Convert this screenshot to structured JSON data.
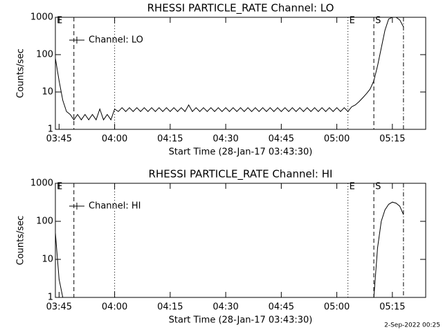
{
  "chart_data": [
    {
      "type": "line",
      "title": "RHESSI PARTICLE_RATE Channel: LO",
      "xlabel": "Start Time (28-Jan-17 03:43:30)",
      "ylabel": "Counts/sec",
      "log_y": true,
      "legend": "upper left",
      "xlim": [
        "03:44",
        "05:24"
      ],
      "xticks": [
        "03:45",
        "04:00",
        "04:15",
        "04:30",
        "04:45",
        "05:00",
        "05:15"
      ],
      "ylim": [
        1,
        1000
      ],
      "yticks": [
        1,
        10,
        100,
        1000
      ],
      "markers": [
        {
          "x": "03:49",
          "style": "dashed"
        },
        {
          "x": "04:00",
          "style": "dotted"
        },
        {
          "x": "05:03",
          "style": "dotted"
        },
        {
          "x": "05:10",
          "style": "dashed"
        },
        {
          "x": "05:18",
          "style": "dashdot"
        }
      ],
      "annotations": [
        {
          "text": "E",
          "x": "03:44"
        },
        {
          "text": "E",
          "x": "05:03"
        },
        {
          "text": "S",
          "x": "05:10"
        }
      ],
      "x": [
        "03:44",
        "03:45",
        "03:46",
        "03:47",
        "03:48",
        "03:49",
        "03:50",
        "03:51",
        "03:52",
        "03:53",
        "03:54",
        "03:55",
        "03:56",
        "03:57",
        "03:58",
        "03:59",
        "04:00",
        "04:01",
        "04:02",
        "04:03",
        "04:04",
        "04:05",
        "04:06",
        "04:07",
        "04:08",
        "04:09",
        "04:10",
        "04:11",
        "04:12",
        "04:13",
        "04:14",
        "04:15",
        "04:16",
        "04:17",
        "04:18",
        "04:19",
        "04:20",
        "04:21",
        "04:22",
        "04:23",
        "04:24",
        "04:25",
        "04:26",
        "04:27",
        "04:28",
        "04:29",
        "04:30",
        "04:31",
        "04:32",
        "04:33",
        "04:34",
        "04:35",
        "04:36",
        "04:37",
        "04:38",
        "04:39",
        "04:40",
        "04:41",
        "04:42",
        "04:43",
        "04:44",
        "04:45",
        "04:46",
        "04:47",
        "04:48",
        "04:49",
        "04:50",
        "04:51",
        "04:52",
        "04:53",
        "04:54",
        "04:55",
        "04:56",
        "04:57",
        "04:58",
        "04:59",
        "05:00",
        "05:01",
        "05:02",
        "05:03",
        "05:04",
        "05:05",
        "05:06",
        "05:07",
        "05:08",
        "05:09",
        "05:10",
        "05:11",
        "05:12",
        "05:13",
        "05:14",
        "05:15",
        "05:16",
        "05:17",
        "05:18"
      ],
      "series": [
        {
          "name": "Channel: LO",
          "color": "#000000",
          "values": [
            80,
            20,
            6,
            3,
            2.5,
            1.8,
            2.5,
            1.8,
            2.5,
            1.8,
            2.5,
            1.8,
            3.5,
            1.8,
            2.5,
            1.8,
            3.5,
            3.0,
            3.8,
            3.0,
            3.8,
            3.0,
            3.8,
            3.0,
            3.8,
            3.0,
            3.8,
            3.0,
            3.8,
            3.0,
            3.8,
            3.0,
            3.8,
            3.0,
            3.8,
            3.0,
            4.5,
            3.0,
            3.8,
            3.0,
            3.8,
            3.0,
            3.8,
            3.0,
            3.8,
            3.0,
            3.8,
            3.0,
            3.8,
            3.0,
            3.8,
            3.0,
            3.8,
            3.0,
            3.8,
            3.0,
            3.8,
            3.0,
            3.8,
            3.0,
            3.8,
            3.0,
            3.8,
            3.0,
            3.8,
            3.0,
            3.8,
            3.0,
            3.8,
            3.0,
            3.8,
            3.0,
            3.8,
            3.0,
            3.8,
            3.0,
            3.8,
            3.0,
            3.8,
            3.0,
            4,
            4.5,
            5.5,
            7,
            9,
            12,
            20,
            50,
            150,
            450,
            900,
            1000,
            1000,
            850,
            550
          ]
        }
      ]
    },
    {
      "type": "line",
      "title": "RHESSI PARTICLE_RATE Channel: HI",
      "xlabel": "Start Time (28-Jan-17 03:43:30)",
      "ylabel": "Counts/sec",
      "log_y": true,
      "legend": "upper left",
      "xlim": [
        "03:44",
        "05:24"
      ],
      "xticks": [
        "03:45",
        "04:00",
        "04:15",
        "04:30",
        "04:45",
        "05:00",
        "05:15"
      ],
      "ylim": [
        1,
        1000
      ],
      "yticks": [
        1,
        10,
        100,
        1000
      ],
      "markers": [
        {
          "x": "03:49",
          "style": "dashed"
        },
        {
          "x": "04:00",
          "style": "dotted"
        },
        {
          "x": "05:03",
          "style": "dotted"
        },
        {
          "x": "05:10",
          "style": "dashed"
        },
        {
          "x": "05:18",
          "style": "dashdot"
        }
      ],
      "annotations": [
        {
          "text": "E",
          "x": "03:44"
        },
        {
          "text": "E",
          "x": "05:03"
        },
        {
          "text": "S",
          "x": "05:10"
        }
      ],
      "x": [
        "03:44",
        "03:45",
        "03:46",
        "04:30",
        "05:10",
        "05:11",
        "05:12",
        "05:13",
        "05:14",
        "05:15",
        "05:16",
        "05:17",
        "05:18"
      ],
      "series": [
        {
          "name": "Channel: HI",
          "color": "#000000",
          "values": [
            50,
            3,
            1,
            null,
            1,
            20,
            100,
            200,
            280,
            320,
            300,
            250,
            150
          ]
        }
      ]
    }
  ],
  "footer": "2-Sep-2022 00:25"
}
